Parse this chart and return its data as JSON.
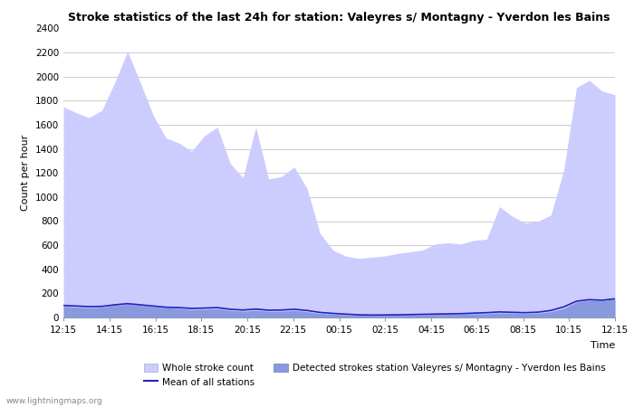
{
  "title": "Stroke statistics of the last 24h for station: Valeyres s/ Montagny - Yverdon les Bains",
  "xlabel": "Time",
  "ylabel": "Count per hour",
  "x_labels": [
    "12:15",
    "14:15",
    "16:15",
    "18:15",
    "20:15",
    "22:15",
    "00:15",
    "02:15",
    "04:15",
    "06:15",
    "08:15",
    "10:15",
    "12:15"
  ],
  "ylim": [
    0,
    2400
  ],
  "yticks": [
    0,
    200,
    400,
    600,
    800,
    1000,
    1200,
    1400,
    1600,
    1800,
    2000,
    2200,
    2400
  ],
  "whole_stroke_color": "#ccccff",
  "detected_stroke_color": "#8899dd",
  "mean_line_color": "#2222bb",
  "background_color": "#ffffff",
  "watermark": "www.lightningmaps.org",
  "whole_stroke_values": [
    1750,
    1700,
    1660,
    1720,
    1950,
    2210,
    1950,
    1680,
    1490,
    1450,
    1380,
    1510,
    1580,
    1280,
    1160,
    1580,
    1150,
    1170,
    1250,
    1070,
    700,
    560,
    510,
    490,
    500,
    510,
    530,
    545,
    560,
    610,
    620,
    610,
    640,
    650,
    920,
    840,
    785,
    800,
    850,
    1220,
    1910,
    1970,
    1880,
    1850
  ],
  "detected_stroke_values": [
    95,
    85,
    80,
    85,
    100,
    110,
    100,
    90,
    80,
    75,
    65,
    68,
    72,
    58,
    52,
    60,
    50,
    52,
    58,
    48,
    33,
    28,
    22,
    19,
    17,
    18,
    19,
    21,
    22,
    24,
    26,
    28,
    30,
    32,
    38,
    36,
    33,
    36,
    48,
    75,
    128,
    142,
    138,
    152
  ],
  "mean_line_values": [
    100,
    95,
    90,
    92,
    105,
    115,
    105,
    95,
    85,
    82,
    75,
    78,
    82,
    68,
    62,
    70,
    60,
    62,
    68,
    58,
    42,
    34,
    28,
    22,
    20,
    21,
    22,
    24,
    26,
    28,
    30,
    32,
    36,
    40,
    46,
    43,
    40,
    44,
    58,
    88,
    135,
    148,
    143,
    155
  ]
}
